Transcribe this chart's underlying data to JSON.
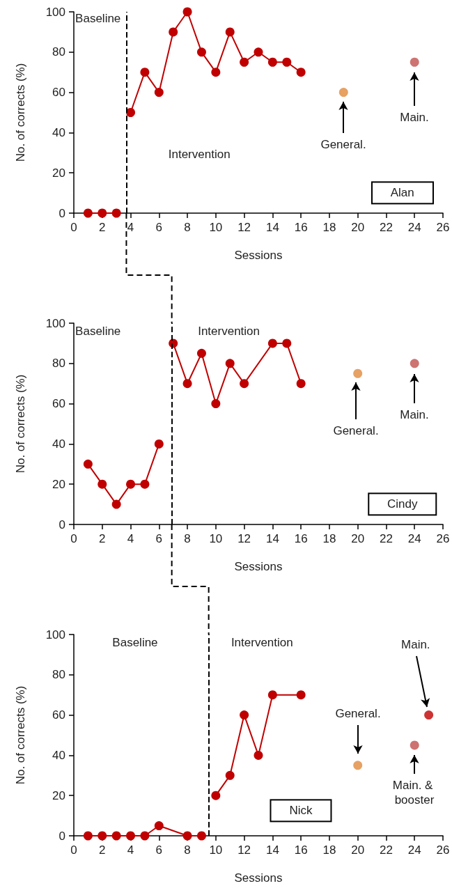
{
  "chart_data": [
    {
      "type": "line",
      "title": "Alan",
      "xlabel": "Sessions",
      "ylabel": "No. of corrects (%)",
      "xlim": [
        0,
        26
      ],
      "xticks": [
        0,
        2,
        4,
        6,
        8,
        10,
        12,
        14,
        16,
        18,
        20,
        22,
        24,
        26
      ],
      "ylim": [
        0,
        100
      ],
      "yticks": [
        0,
        20,
        40,
        60,
        80,
        100
      ],
      "marker": "circle",
      "line_style": "solid",
      "annotations": [
        "Baseline",
        "Intervention",
        "General.",
        "Main."
      ],
      "ref_lines": [
        {
          "axis": "x",
          "value": 3.7,
          "color": "#000000",
          "line_style": "dashed"
        }
      ],
      "series": [
        {
          "color": "#c00000",
          "x": [
            1,
            2,
            3
          ],
          "values": [
            0,
            0,
            0
          ]
        },
        {
          "color": "#c00000",
          "x": [
            4,
            5,
            6,
            7,
            8,
            9,
            10,
            11,
            12,
            13,
            14,
            15,
            16
          ],
          "values": [
            50,
            70,
            60,
            90,
            100,
            80,
            70,
            90,
            75,
            80,
            75,
            75,
            70
          ]
        },
        {
          "type": "scatter",
          "color": "#e08a3c",
          "x": [
            19
          ],
          "values": [
            60
          ]
        },
        {
          "type": "scatter",
          "color": "#c0504d",
          "x": [
            24
          ],
          "values": [
            75
          ]
        }
      ]
    },
    {
      "type": "line",
      "title": "Cindy",
      "xlabel": "Sessions",
      "ylabel": "No. of corrects (%)",
      "xlim": [
        0,
        26
      ],
      "xticks": [
        0,
        2,
        4,
        6,
        8,
        10,
        12,
        14,
        16,
        18,
        20,
        22,
        24,
        26
      ],
      "ylim": [
        0,
        100
      ],
      "yticks": [
        0,
        20,
        40,
        60,
        80,
        100
      ],
      "marker": "circle",
      "line_style": "solid",
      "annotations": [
        "Baseline",
        "Intervention",
        "General.",
        "Main."
      ],
      "ref_lines": [
        {
          "axis": "x",
          "value": 6.9,
          "color": "#000000",
          "line_style": "dashed"
        }
      ],
      "series": [
        {
          "color": "#c00000",
          "x": [
            1,
            2,
            3,
            4,
            5,
            6
          ],
          "values": [
            30,
            20,
            10,
            20,
            20,
            40
          ]
        },
        {
          "color": "#c00000",
          "x": [
            7,
            8,
            9,
            10,
            11,
            12,
            14,
            15,
            16
          ],
          "values": [
            90,
            70,
            85,
            60,
            80,
            70,
            90,
            90,
            70
          ]
        },
        {
          "type": "scatter",
          "color": "#e08a3c",
          "x": [
            20
          ],
          "values": [
            75
          ]
        },
        {
          "type": "scatter",
          "color": "#c0504d",
          "x": [
            24
          ],
          "values": [
            80
          ]
        }
      ]
    },
    {
      "type": "line",
      "title": "Nick",
      "xlabel": "Sessions",
      "ylabel": "No. of corrects (%)",
      "xlim": [
        0,
        26
      ],
      "xticks": [
        0,
        2,
        4,
        6,
        8,
        10,
        12,
        14,
        16,
        18,
        20,
        22,
        24,
        26
      ],
      "ylim": [
        0,
        100
      ],
      "yticks": [
        0,
        20,
        40,
        60,
        80,
        100
      ],
      "marker": "circle",
      "line_style": "solid",
      "annotations": [
        "Baseline",
        "Intervention",
        "General.",
        "Main. & booster",
        "Main."
      ],
      "ref_lines": [
        {
          "axis": "x",
          "value": 9.5,
          "color": "#000000",
          "line_style": "dashed"
        }
      ],
      "series": [
        {
          "color": "#c00000",
          "x": [
            1,
            2,
            3,
            4,
            5,
            6,
            8,
            9
          ],
          "values": [
            0,
            0,
            0,
            0,
            0,
            5,
            0,
            0
          ]
        },
        {
          "color": "#c00000",
          "x": [
            10,
            11,
            12,
            13,
            14,
            16
          ],
          "values": [
            20,
            30,
            60,
            40,
            70,
            70
          ]
        },
        {
          "type": "scatter",
          "color": "#e08a3c",
          "x": [
            20
          ],
          "values": [
            35
          ]
        },
        {
          "type": "scatter",
          "color": "#c0504d",
          "x": [
            24
          ],
          "values": [
            45
          ]
        },
        {
          "type": "scatter",
          "color": "#c00000",
          "x": [
            25
          ],
          "values": [
            60
          ]
        }
      ]
    }
  ]
}
